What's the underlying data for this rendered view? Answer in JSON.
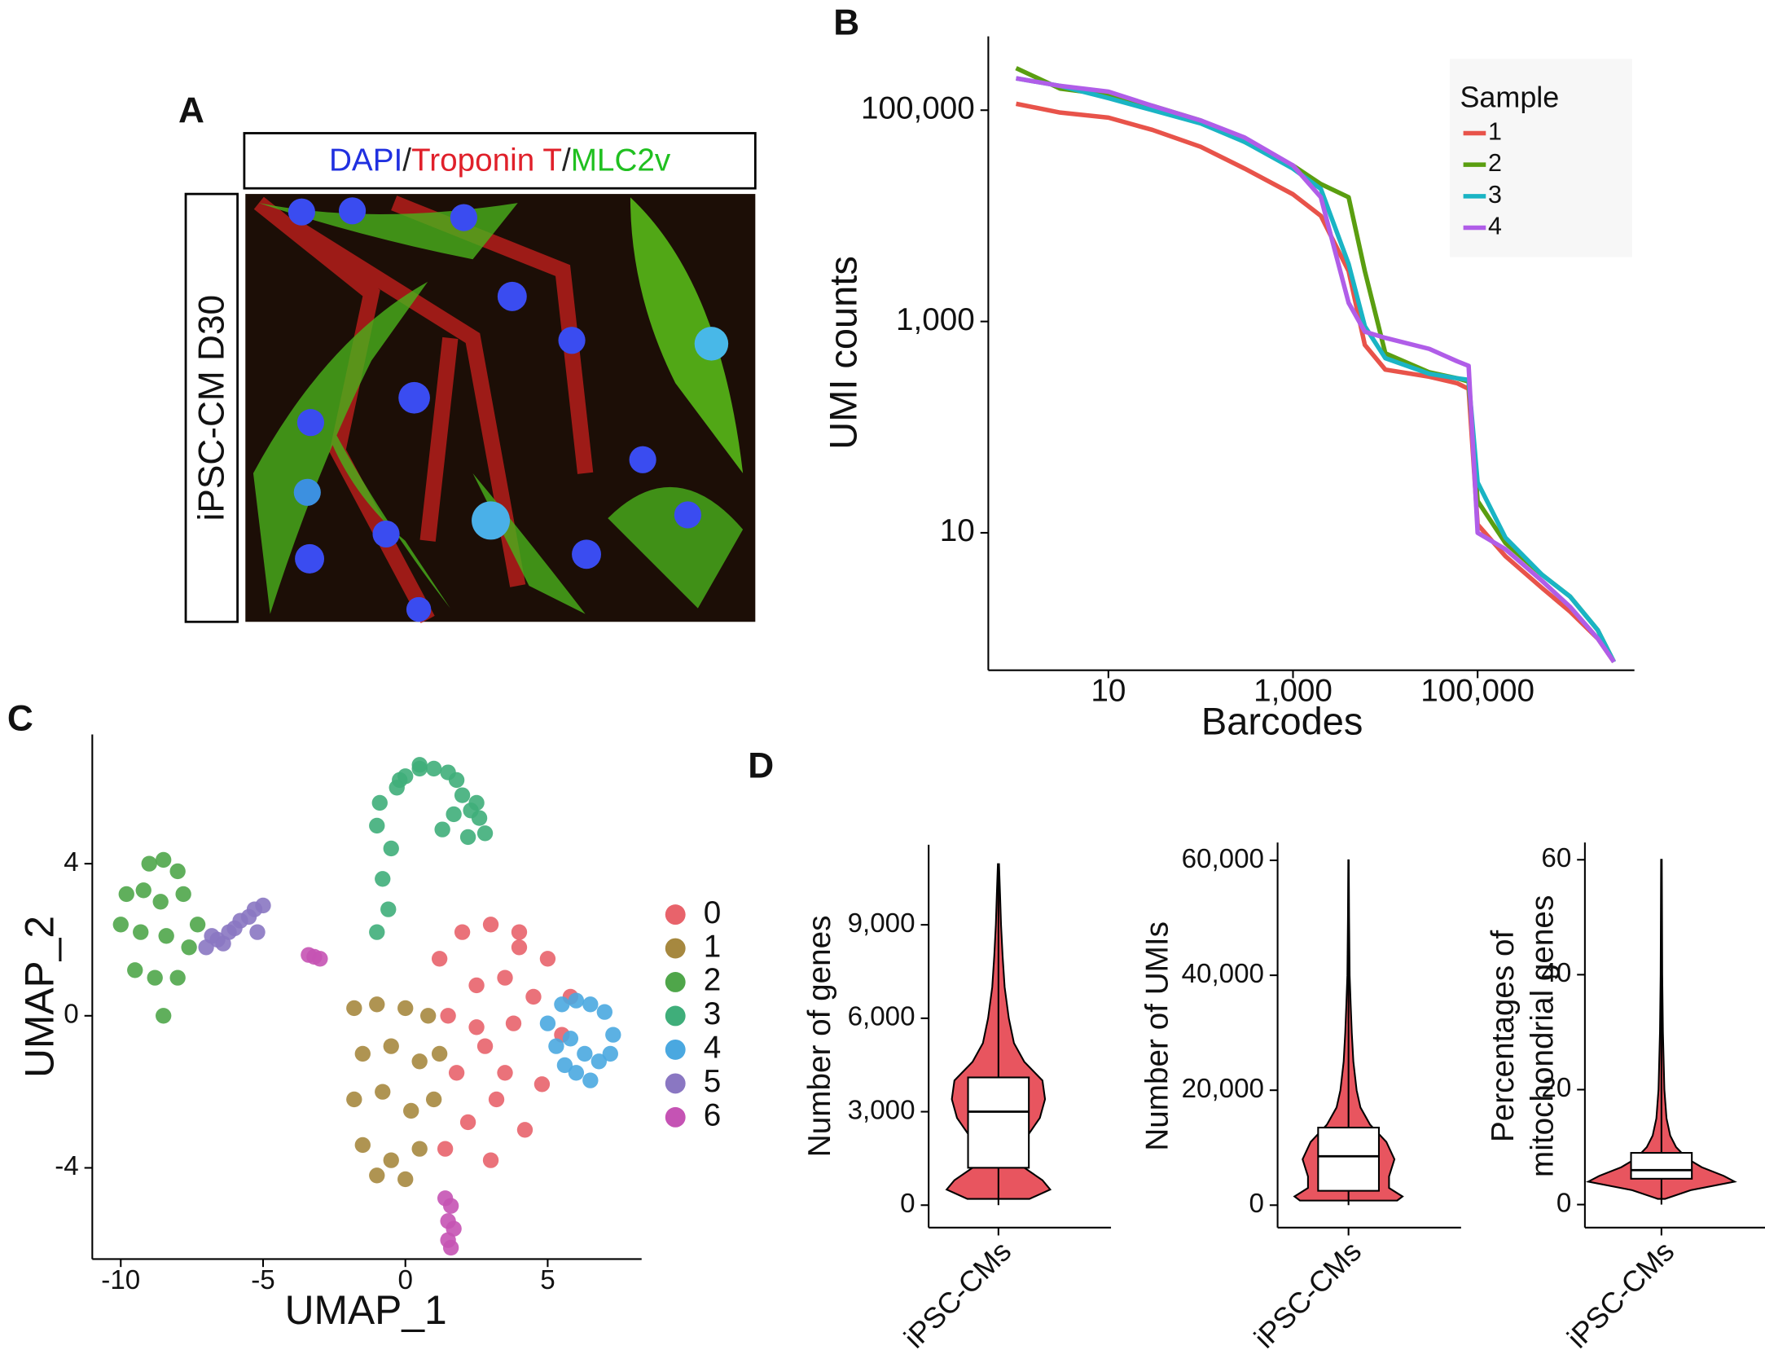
{
  "panel_labels": [
    "A",
    "B",
    "C",
    "D"
  ],
  "panel_a": {
    "header": [
      "DAPI",
      "/",
      "Troponin T",
      "/",
      "MLC2v"
    ],
    "row_label": "iPSC-CM D30"
  },
  "chart_data": [
    {
      "type": "line",
      "xlabel": "Barcodes",
      "ylabel": "UMI counts",
      "xscale": "log",
      "yscale": "log",
      "xlim": [
        0.5,
        5000000
      ],
      "ylim": [
        0.5,
        500000
      ],
      "xticks": [
        10,
        {
          "value": 1000,
          "label": "1,000"
        },
        {
          "value": 100000,
          "label": "100,000"
        }
      ],
      "yticks": [
        10,
        {
          "value": 1000,
          "label": "1,000"
        },
        {
          "value": 100000,
          "label": "100,000"
        }
      ],
      "legend_title": "Sample",
      "x": [
        1,
        3,
        10,
        30,
        100,
        300,
        1000,
        2000,
        4000,
        6000,
        10000,
        30000,
        60000,
        80000,
        100000,
        200000,
        500000,
        1000000,
        2000000,
        3000000
      ],
      "series": [
        {
          "name": "1",
          "color": "#e8534a",
          "values": [
            115000,
            95000,
            85000,
            65000,
            45000,
            28000,
            16000,
            10000,
            3000,
            600,
            350,
            300,
            260,
            230,
            12,
            6,
            3,
            1.8,
            1,
            0.6
          ]
        },
        {
          "name": "2",
          "color": "#5a9e10",
          "values": [
            250000,
            160000,
            140000,
            110000,
            80000,
            50000,
            30000,
            20000,
            15000,
            3000,
            500,
            330,
            290,
            270,
            20,
            8,
            4,
            2.5,
            1.2,
            0.6
          ]
        },
        {
          "name": "3",
          "color": "#1ab4c4",
          "values": [
            200000,
            170000,
            130000,
            100000,
            75000,
            50000,
            28000,
            18000,
            3500,
            900,
            450,
            320,
            290,
            280,
            30,
            9,
            4,
            2.5,
            1.2,
            0.6
          ]
        },
        {
          "name": "4",
          "color": "#b05de8",
          "values": [
            200000,
            170000,
            150000,
            110000,
            80000,
            55000,
            30000,
            15000,
            1500,
            800,
            700,
            550,
            420,
            380,
            10,
            7,
            3.5,
            2,
            1,
            0.6
          ]
        }
      ]
    },
    {
      "type": "scatter",
      "xlabel": "UMAP_1",
      "ylabel": "UMAP_2",
      "xlim": [
        -11,
        8.3
      ],
      "ylim": [
        -6.4,
        7.4
      ],
      "xticks": [
        -10,
        -5,
        0,
        5
      ],
      "yticks": [
        -4,
        0,
        4
      ],
      "series": [
        {
          "name": "0",
          "color": "#e8636b",
          "x": [
            1.2,
            2,
            3,
            4,
            5,
            5.8,
            1.5,
            2.5,
            3.5,
            4.5,
            5.5,
            1.8,
            2.8,
            3.8,
            4.8,
            2.2,
            3.2,
            4.2,
            1.4,
            3,
            4,
            2.5,
            3.5
          ],
          "y": [
            1.5,
            2.2,
            2.4,
            2.2,
            1.5,
            0.5,
            0,
            0.8,
            1,
            0.5,
            -0.5,
            -1.5,
            -0.8,
            -0.2,
            -1.8,
            -2.8,
            -2.2,
            -3,
            -3.5,
            -3.8,
            1.8,
            -0.3,
            -1.5
          ]
        },
        {
          "name": "1",
          "color": "#a6883f",
          "x": [
            -1.8,
            -1,
            0,
            0.8,
            -1.5,
            -0.5,
            0.5,
            1.2,
            -1.8,
            -0.8,
            0.2,
            1,
            -1.5,
            -0.5,
            0.5,
            -1,
            0
          ],
          "y": [
            0.2,
            0.3,
            0.2,
            0,
            -1,
            -0.8,
            -1.2,
            -1,
            -2.2,
            -2,
            -2.5,
            -2.2,
            -3.4,
            -3.8,
            -3.5,
            -4.2,
            -4.3
          ]
        },
        {
          "name": "2",
          "color": "#4fa64a",
          "x": [
            -9,
            -8.5,
            -8,
            -9.8,
            -9.2,
            -8.6,
            -7.8,
            -7.3,
            -10,
            -9.3,
            -8.4,
            -7.6,
            -9.5,
            -8.8,
            -8,
            -8.5
          ],
          "y": [
            4,
            4.1,
            3.8,
            3.2,
            3.3,
            3,
            3.2,
            2.4,
            2.4,
            2.2,
            2.1,
            1.8,
            1.2,
            1,
            1,
            0
          ]
        },
        {
          "name": "3",
          "color": "#3fae7a",
          "x": [
            -1,
            -0.6,
            -0.8,
            -0.5,
            -1,
            -0.9,
            -0.3,
            0,
            0.5,
            1,
            1.5,
            1.8,
            2,
            2.3,
            2.6,
            2.8,
            2.2,
            1.3,
            1.7,
            2.5,
            0.5,
            -0.2
          ],
          "y": [
            2.2,
            2.8,
            3.6,
            4.4,
            5,
            5.6,
            6,
            6.3,
            6.5,
            6.5,
            6.4,
            6.2,
            5.8,
            5.4,
            5.2,
            4.8,
            4.7,
            4.9,
            5.3,
            5.6,
            6.6,
            6.2
          ]
        },
        {
          "name": "4",
          "color": "#4aa8e0",
          "x": [
            5,
            5.5,
            6,
            6.5,
            7,
            7.3,
            5.3,
            5.8,
            6.3,
            6.8,
            7.2,
            6,
            6.5,
            5.6
          ],
          "y": [
            -0.2,
            0.3,
            0.4,
            0.3,
            0.1,
            -0.5,
            -0.8,
            -0.6,
            -1,
            -1.2,
            -1,
            -1.5,
            -1.7,
            -1.3
          ]
        },
        {
          "name": "5",
          "color": "#8a77c2",
          "x": [
            -7,
            -6.6,
            -6.2,
            -5.8,
            -5.3,
            -5,
            -6.4,
            -6,
            -5.5,
            -5.2,
            -6.8
          ],
          "y": [
            1.8,
            2,
            2.2,
            2.5,
            2.8,
            2.9,
            1.9,
            2.3,
            2.6,
            2.2,
            2.1
          ]
        },
        {
          "name": "6",
          "color": "#c553b4",
          "x": [
            -3.4,
            -3.2,
            -3,
            1.4,
            1.6,
            1.5,
            1.7,
            1.5,
            1.6
          ],
          "y": [
            1.6,
            1.55,
            1.5,
            -4.8,
            -5,
            -5.4,
            -5.6,
            -5.9,
            -6.1
          ]
        }
      ]
    },
    {
      "type": "violin",
      "ylabel": "Number of genes",
      "categories": [
        "iPSC-CMs"
      ],
      "color": "#e8555f",
      "ylim": [
        -720,
        11570
      ],
      "yticks": [
        0,
        {
          "value": 3000,
          "label": "3,000"
        },
        {
          "value": 6000,
          "label": "6,000"
        },
        {
          "value": 9000,
          "label": "9,000"
        }
      ],
      "violin": {
        "y": [
          200,
          500,
          800,
          1200,
          1700,
          2200,
          2800,
          3400,
          4000,
          4600,
          5200,
          6000,
          7000,
          8000,
          9000,
          10000,
          10950
        ],
        "density": [
          0.6,
          1,
          0.85,
          0.5,
          0.4,
          0.55,
          0.8,
          0.9,
          0.85,
          0.5,
          0.3,
          0.2,
          0.12,
          0.08,
          0.05,
          0.03,
          0.01
        ]
      },
      "box": {
        "whisker_low": 0,
        "q1": 1200,
        "median": 3000,
        "q3": 4100,
        "whisker_high": 10950
      }
    },
    {
      "type": "violin",
      "ylabel": "Number of UMIs",
      "categories": [
        "iPSC-CMs"
      ],
      "color": "#e8555f",
      "ylim": [
        -3900,
        63100
      ],
      "yticks": [
        0,
        {
          "value": 20000,
          "label": "20,000"
        },
        {
          "value": 40000,
          "label": "40,000"
        },
        {
          "value": 60000,
          "label": "60,000"
        }
      ],
      "violin": {
        "y": [
          800,
          1500,
          3000,
          5000,
          8000,
          11000,
          14000,
          17000,
          20000,
          25000,
          30000,
          35000,
          40000,
          50000,
          60000
        ],
        "density": [
          0.9,
          1,
          0.75,
          0.75,
          0.85,
          0.7,
          0.4,
          0.22,
          0.15,
          0.09,
          0.06,
          0.04,
          0.02,
          0.01,
          0.005
        ]
      },
      "box": {
        "whisker_low": 0,
        "q1": 2500,
        "median": 8500,
        "q3": 13500,
        "whisker_high": 60000
      }
    },
    {
      "type": "violin",
      "ylabel": [
        "Percentages of",
        "mitochondrial genes"
      ],
      "categories": [
        "iPSC-CMs"
      ],
      "color": "#e8555f",
      "ylim": [
        -4,
        63
      ],
      "yticks": [
        0,
        20,
        40,
        60
      ],
      "violin": {
        "y": [
          1,
          2.5,
          4,
          5,
          6.5,
          8,
          10,
          12,
          15,
          20,
          30,
          40,
          60
        ],
        "density": [
          0.05,
          0.4,
          1,
          0.85,
          0.55,
          0.35,
          0.2,
          0.12,
          0.07,
          0.04,
          0.02,
          0.01,
          0.005
        ]
      },
      "box": {
        "whisker_low": 0,
        "q1": 4.5,
        "median": 6,
        "q3": 9,
        "whisker_high": 60
      }
    }
  ]
}
